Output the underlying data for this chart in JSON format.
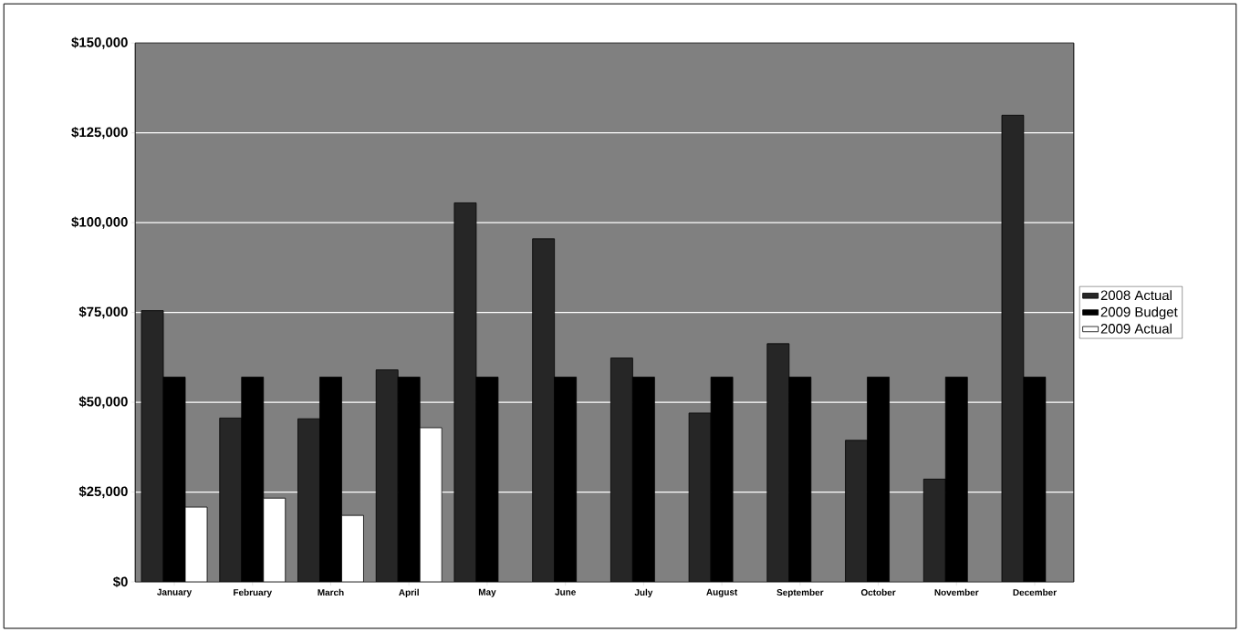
{
  "chart_data": {
    "type": "bar",
    "categories": [
      "January",
      "February",
      "March",
      "April",
      "May",
      "June",
      "July",
      "August",
      "September",
      "October",
      "November",
      "December"
    ],
    "series": [
      {
        "name": "2008 Actual",
        "color": "#262626",
        "values": [
          75500,
          45600,
          45400,
          59000,
          105500,
          95500,
          62300,
          47000,
          66300,
          39400,
          28600,
          129900
        ]
      },
      {
        "name": "2009 Budget",
        "color": "#000000",
        "values": [
          57000,
          57000,
          57000,
          57000,
          57000,
          57000,
          57000,
          57000,
          57000,
          57000,
          57000,
          57000
        ]
      },
      {
        "name": "2009 Actual",
        "color": "#ffffff",
        "values": [
          20800,
          23300,
          18500,
          42900,
          null,
          null,
          null,
          null,
          null,
          null,
          null,
          null
        ]
      }
    ],
    "ylim": [
      0,
      150000
    ],
    "yticks": [
      {
        "value": 0,
        "label": "$0"
      },
      {
        "value": 25000,
        "label": "$25,000"
      },
      {
        "value": 50000,
        "label": "$50,000"
      },
      {
        "value": 75000,
        "label": "$75,000"
      },
      {
        "value": 100000,
        "label": "$100,000"
      },
      {
        "value": 125000,
        "label": "$125,000"
      },
      {
        "value": 150000,
        "label": "$150,000"
      }
    ],
    "grid": "y",
    "legend": "right"
  }
}
